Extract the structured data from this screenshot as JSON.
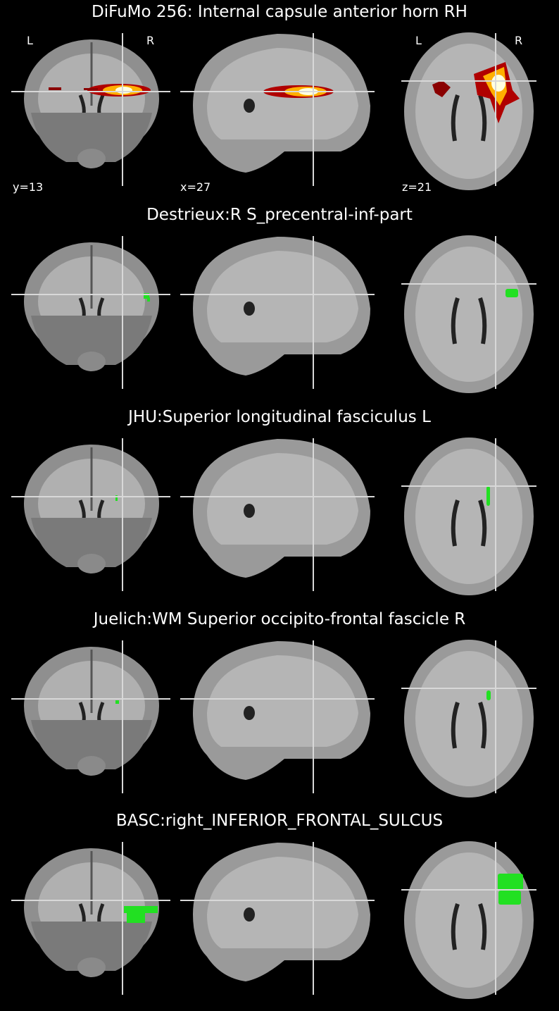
{
  "panels": [
    {
      "title": "DiFuMo 256: Internal capsule anterior horn RH",
      "overlay_type": "heatmap",
      "orientation_labels": {
        "left": "L",
        "right": "R"
      },
      "coords": {
        "coronal": "y=13",
        "sagittal": "x=27",
        "axial": "z=21"
      }
    },
    {
      "title": "Destrieux:R S_precentral-inf-part",
      "overlay_type": "mask",
      "overlay_color": "#22e022"
    },
    {
      "title": "JHU:Superior longitudinal fasciculus L",
      "overlay_type": "mask",
      "overlay_color": "#22e022"
    },
    {
      "title": "Juelich:WM Superior occipito-frontal fascicle R",
      "overlay_type": "mask",
      "overlay_color": "#22e022"
    },
    {
      "title": "BASC:right_INFERIOR_FRONTAL_SULCUS",
      "overlay_type": "mask",
      "overlay_color": "#22e022"
    }
  ],
  "colors": {
    "background": "#000000",
    "crosshair": "#d8d8d8",
    "brain_gray": "#9a9a9a",
    "mask_green": "#22e022",
    "heat_core": "#ffffe0",
    "heat_mid": "#ffb000",
    "heat_edge": "#b00000"
  }
}
